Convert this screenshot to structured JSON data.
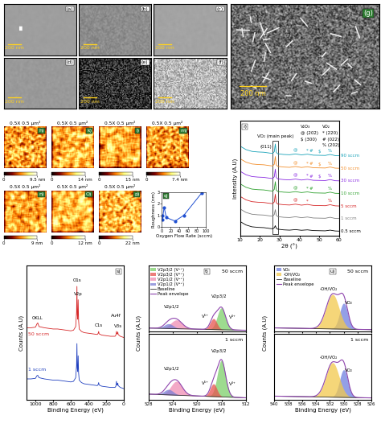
{
  "sem": {
    "panels": [
      {
        "label": "(a)",
        "scale_bar": "200 nm"
      },
      {
        "label": "(b)",
        "scale_bar": "200 nm"
      },
      {
        "label": "(c)",
        "scale_bar": "200 nm"
      },
      {
        "label": "(d)",
        "scale_bar": "200 nm"
      },
      {
        "label": "(e)",
        "scale_bar": "200 nm"
      },
      {
        "label": "(f)",
        "scale_bar": "200 nm"
      }
    ],
    "large": {
      "label": "(g)",
      "scale_bar": "200 nm"
    }
  },
  "afm": {
    "panels": [
      {
        "label": "h)",
        "scan_size": "0.5X 0.5 µm²",
        "colorbar": {
          "range": [
            0,
            9.5
          ],
          "ticks": [
            0,
            {
              "value": 9.5,
              "label": "9.5 nm"
            }
          ]
        }
      },
      {
        "label": "k)",
        "scan_size": "0.5X 0.5 µm²",
        "colorbar": {
          "range": [
            0,
            14
          ],
          "ticks": [
            0,
            {
              "value": 14,
              "label": "14 nm"
            }
          ]
        }
      },
      {
        "label": "l)",
        "scan_size": "0.5X 0.5 µm²",
        "colorbar": {
          "range": [
            0,
            15
          ],
          "ticks": [
            0,
            {
              "value": 15,
              "label": "15 nm"
            }
          ]
        }
      },
      {
        "label": "m)",
        "scan_size": "0.5X 0.5 µm²",
        "colorbar": {
          "range": [
            0,
            7.4
          ],
          "ticks": [
            0,
            {
              "value": 7.4,
              "label": "7.4 nm"
            }
          ]
        }
      },
      {
        "label": "n)",
        "scan_size": "0.5X 0.5 µm²",
        "colorbar": {
          "range": [
            0,
            9
          ],
          "ticks": [
            0,
            {
              "value": 9,
              "label": "9 nm"
            }
          ]
        }
      },
      {
        "label": "O)",
        "scan_size": "0.5X 0.5 µm²",
        "colorbar": {
          "range": [
            0,
            12
          ],
          "ticks": [
            0,
            {
              "value": 12,
              "label": "12 nm"
            }
          ]
        }
      },
      {
        "label": "p)",
        "scan_size": "0.5X 0.5 µm²",
        "colorbar": {
          "range": [
            0,
            22
          ],
          "ticks": [
            0,
            {
              "value": 22,
              "label": "22 nm"
            }
          ]
        }
      }
    ]
  },
  "chart_data": [
    {
      "panel_label": "q)",
      "type": "line",
      "x_label": "Oxygen Flow Rate (sccm)",
      "y_label": "Roughness (nm)",
      "x": [
        0.5,
        1,
        5,
        10,
        30,
        50,
        90
      ],
      "values": [
        1.0,
        0.6,
        1.7,
        0.8,
        0.5,
        1.0,
        2.9
      ],
      "xlim": [
        0,
        100
      ],
      "xticks": [
        0,
        20,
        40,
        60,
        80,
        100
      ],
      "ylim": [
        0,
        3
      ],
      "yticks": [
        0,
        1,
        2,
        3
      ],
      "color": "#1f4fd1",
      "marker": "circle"
    },
    {
      "panel_label": "r)",
      "type": "line",
      "x_label": "2θ (°)",
      "y_label": "Intensity (A.U)",
      "x": [
        10,
        13,
        16,
        19,
        22,
        25,
        26.5,
        27.3,
        27.8,
        28.3,
        29,
        32,
        35,
        38,
        41,
        44,
        47,
        50,
        53,
        55.5,
        58,
        60
      ],
      "series": [
        {
          "name": "90 sccm",
          "color": "#17a2b8",
          "values": [
            6.4,
            6.15,
            6.02,
            5.98,
            5.96,
            5.9,
            5.88,
            6.0,
            6.55,
            5.95,
            5.85,
            5.8,
            5.78,
            5.84,
            5.77,
            5.82,
            5.75,
            5.74,
            5.73,
            5.8,
            5.72,
            5.71
          ]
        },
        {
          "name": "50 sccm",
          "color": "#f28e2b",
          "values": [
            5.5,
            5.25,
            5.12,
            5.08,
            5.06,
            5.0,
            4.98,
            5.1,
            5.65,
            5.05,
            4.95,
            4.9,
            4.88,
            4.94,
            4.87,
            4.92,
            4.85,
            4.84,
            4.83,
            4.9,
            4.82,
            4.81
          ]
        },
        {
          "name": "30 sccm",
          "color": "#8a2be2",
          "values": [
            4.6,
            4.35,
            4.22,
            4.18,
            4.16,
            4.1,
            4.08,
            4.2,
            4.75,
            4.15,
            4.05,
            4.0,
            3.98,
            4.04,
            3.97,
            4.02,
            3.95,
            3.94,
            3.93,
            4.0,
            3.92,
            3.91
          ]
        },
        {
          "name": "10 sccm",
          "color": "#2ca02c",
          "values": [
            3.7,
            3.45,
            3.32,
            3.28,
            3.26,
            3.2,
            3.18,
            3.3,
            3.85,
            3.25,
            3.15,
            3.1,
            3.08,
            3.14,
            3.07,
            3.12,
            3.05,
            3.04,
            3.03,
            3.1,
            3.02,
            3.01
          ]
        },
        {
          "name": "5 sccm",
          "color": "#d62728",
          "values": [
            2.8,
            2.55,
            2.42,
            2.38,
            2.36,
            2.3,
            2.28,
            2.4,
            2.95,
            2.35,
            2.25,
            2.2,
            2.18,
            2.24,
            2.17,
            2.22,
            2.15,
            2.14,
            2.13,
            2.2,
            2.12,
            2.11
          ]
        },
        {
          "name": "1 sccm",
          "color": "#7f7f7f",
          "values": [
            1.9,
            1.65,
            1.52,
            1.48,
            1.46,
            1.4,
            1.38,
            1.5,
            1.85,
            1.45,
            1.35,
            1.3,
            1.28,
            1.34,
            1.27,
            1.32,
            1.25,
            1.24,
            1.23,
            1.3,
            1.22,
            1.21
          ]
        },
        {
          "name": "0.5 sccm",
          "color": "#000000",
          "values": [
            1.0,
            0.75,
            0.62,
            0.58,
            0.56,
            0.5,
            0.48,
            0.55,
            0.7,
            0.52,
            0.45,
            0.4,
            0.38,
            0.42,
            0.37,
            0.4,
            0.35,
            0.34,
            0.33,
            0.38,
            0.32,
            0.31
          ]
        }
      ],
      "xlim": [
        10,
        60
      ],
      "xticks": [
        10,
        20,
        30,
        40,
        50,
        60
      ],
      "ylim": [
        0,
        8.2
      ],
      "tick_labels": "x",
      "main_peak": {
        "text": "VO₂ (main peak)",
        "plane": "(011)",
        "x": 27.8
      },
      "peak_marks": [
        {
          "symbol": "@",
          "x": 38,
          "on": [
            "90 sccm",
            "50 sccm",
            "30 sccm",
            "10 sccm",
            "5 sccm"
          ]
        },
        {
          "symbol": "*",
          "x": 44,
          "on": [
            "90 sccm",
            "50 sccm",
            "30 sccm",
            "10 sccm",
            "5 sccm"
          ]
        },
        {
          "symbol": "#",
          "x": 46,
          "on": [
            "90 sccm",
            "50 sccm",
            "30 sccm",
            "10 sccm"
          ]
        },
        {
          "symbol": "$",
          "x": 50,
          "on": [
            "90 sccm",
            "50 sccm",
            "30 sccm"
          ]
        },
        {
          "symbol": "%",
          "x": 55.5,
          "on": [
            "90 sccm",
            "50 sccm",
            "30 sccm",
            "10 sccm",
            "5 sccm"
          ]
        }
      ],
      "phase_key": [
        {
          "phase": "V₂O₃",
          "entries": [
            "@ (202)",
            "$ (300)"
          ]
        },
        {
          "phase": "VO₂",
          "entries": [
            "* (220)",
            "# (022)",
            "% (202)"
          ]
        }
      ]
    },
    {
      "panel_label": "s)",
      "type": "line",
      "x_label": "Binding Energy (eV)",
      "y_label": "Counts (A.U)",
      "x": [
        1100,
        1050,
        1000,
        985,
        975,
        960,
        900,
        850,
        800,
        750,
        700,
        650,
        600,
        570,
        545,
        535,
        531,
        527,
        522,
        517,
        512,
        505,
        480,
        450,
        400,
        350,
        300,
        290,
        285,
        280,
        250,
        200,
        150,
        100,
        90,
        84,
        78,
        72,
        68,
        64,
        40,
        20,
        0
      ],
      "series": [
        {
          "name": "50 sccm",
          "color": "#d62728",
          "values": [
            5.9,
            5.9,
            5.95,
            6.2,
            6.3,
            6.0,
            5.9,
            5.85,
            5.8,
            5.8,
            5.75,
            5.7,
            5.65,
            5.7,
            6.0,
            7.2,
            9.3,
            7.0,
            6.6,
            8.2,
            6.5,
            5.8,
            5.6,
            5.5,
            5.45,
            5.4,
            5.35,
            5.45,
            5.6,
            5.4,
            5.3,
            5.25,
            5.2,
            5.2,
            5.3,
            5.6,
            5.4,
            5.4,
            5.55,
            5.35,
            5.2,
            5.15,
            5.1
          ]
        },
        {
          "name": "1 sccm",
          "color": "#1f3fbf",
          "values": [
            1.7,
            1.7,
            1.75,
            1.95,
            2.0,
            1.8,
            1.7,
            1.65,
            1.6,
            1.6,
            1.55,
            1.5,
            1.45,
            1.5,
            1.8,
            2.8,
            4.6,
            2.6,
            2.3,
            3.6,
            2.2,
            1.6,
            1.4,
            1.3,
            1.25,
            1.2,
            1.15,
            1.25,
            1.4,
            1.2,
            1.1,
            1.05,
            1.0,
            1.0,
            1.1,
            1.5,
            1.2,
            1.2,
            1.35,
            1.15,
            1.0,
            0.95,
            0.9
          ]
        }
      ],
      "xlim": [
        1100,
        0
      ],
      "xticks": [
        1000,
        800,
        600,
        400,
        200,
        0
      ],
      "ylim": [
        0,
        11
      ],
      "tick_labels": "x",
      "peak_labels": [
        {
          "text": "OKLL",
          "x": 980
        },
        {
          "text": "O1s",
          "x": 531
        },
        {
          "text": "V2p",
          "x": 517
        },
        {
          "text": "C1s",
          "x": 285
        },
        {
          "text": "V3s",
          "x": 68
        },
        {
          "text": "Au4f",
          "x": 84
        }
      ]
    },
    {
      "panel_label": "t)",
      "type": "fit",
      "x_label": "Binding Energy (eV)",
      "y_label": "Counts (A.U)",
      "xlim": [
        528,
        512
      ],
      "xticks": [
        528,
        524,
        520,
        516,
        512
      ],
      "tick_labels": "x",
      "legend": "upper left",
      "components": [
        {
          "name": "V2p3/2 (V⁴⁺)",
          "color": "#7ccf6a"
        },
        {
          "name": "V2p3/2 (V⁵⁺)",
          "color": "#e8534f"
        },
        {
          "name": "V2p1/2 (V⁴⁺)",
          "color": "#f08cb4"
        },
        {
          "name": "V2p1/2 (V⁵⁺)",
          "color": "#7b7fd6"
        }
      ],
      "baseline": {
        "name": "Baseline",
        "color": "#333333"
      },
      "envelope": {
        "name": "Peak envelope",
        "color": "#8e44ad"
      },
      "subpanels": [
        {
          "name": "50 sccm",
          "ylim": [
            0,
            3.0
          ],
          "baseline": {
            "x": [
              528,
              512
            ],
            "values": [
              0.15,
              0.05
            ]
          },
          "peaks": [
            {
              "center": 516.0,
              "height": 1.0,
              "fwhm": 1.6
            },
            {
              "center": 517.3,
              "height": 0.5,
              "fwhm": 1.3
            },
            {
              "center": 523.4,
              "height": 0.4,
              "fwhm": 2.2
            },
            {
              "center": 524.7,
              "height": 0.22,
              "fwhm": 1.8
            }
          ],
          "peak_labels": [
            {
              "text": "V2p1/2",
              "x": 524.2
            },
            {
              "text": "V2p3/2",
              "x": 516.4
            },
            {
              "text": "V⁴⁺",
              "x": 514.2
            },
            {
              "text": "V⁵⁺",
              "x": 518.6
            }
          ]
        },
        {
          "name": "1 sccm",
          "ylim": [
            0,
            1.8
          ],
          "baseline": {
            "x": [
              528,
              512
            ],
            "values": [
              0.15,
              0.05
            ]
          },
          "peaks": [
            {
              "center": 516.0,
              "height": 1.0,
              "fwhm": 1.6
            },
            {
              "center": 517.3,
              "height": 0.35,
              "fwhm": 1.3
            },
            {
              "center": 523.4,
              "height": 0.38,
              "fwhm": 2.2
            },
            {
              "center": 524.7,
              "height": 0.15,
              "fwhm": 1.8
            }
          ],
          "peak_labels": [
            {
              "text": "V2p1/2",
              "x": 524.2
            },
            {
              "text": "V2p3/2",
              "x": 516.4
            },
            {
              "text": "V⁴⁺",
              "x": 514.2
            },
            {
              "text": "V⁵⁺",
              "x": 518.6
            }
          ]
        }
      ]
    },
    {
      "panel_label": "u)",
      "type": "fit",
      "x_label": "Binding Energy (eV)",
      "y_label": "Counts (A.U)",
      "xlim": [
        540,
        526
      ],
      "xticks": [
        540,
        538,
        536,
        534,
        532,
        530,
        528,
        526
      ],
      "tick_labels": "x",
      "legend": "upper left",
      "components": [
        {
          "name": "VO₂",
          "color": "#6f7fe0"
        },
        {
          "name": "-OH/VO₂",
          "color": "#f2c94c"
        }
      ],
      "baseline": {
        "name": "Baseline",
        "color": "#333333"
      },
      "envelope": {
        "name": "Peak envelope",
        "color": "#8e44ad"
      },
      "subpanels": [
        {
          "name": "50 sccm",
          "ylim": [
            0,
            1.9
          ],
          "baseline": {
            "x": [
              540,
              526
            ],
            "values": [
              0.1,
              0.05
            ]
          },
          "peaks": [
            {
              "center": 530.0,
              "height": 0.75,
              "fwhm": 1.4
            },
            {
              "center": 531.6,
              "height": 1.0,
              "fwhm": 2.2
            }
          ],
          "peak_labels": [
            {
              "text": "-OH/VO₂",
              "x": 532.2
            },
            {
              "text": "VO₂",
              "x": 529.3
            }
          ]
        },
        {
          "name": "1 sccm",
          "ylim": [
            0,
            1.9
          ],
          "baseline": {
            "x": [
              540,
              526
            ],
            "values": [
              0.1,
              0.05
            ]
          },
          "peaks": [
            {
              "center": 530.0,
              "height": 0.8,
              "fwhm": 1.4
            },
            {
              "center": 531.6,
              "height": 1.0,
              "fwhm": 2.2
            }
          ],
          "peak_labels": [
            {
              "text": "-OH/VO₂",
              "x": 532.2
            },
            {
              "text": "VO₂",
              "x": 529.3
            }
          ]
        }
      ]
    }
  ]
}
